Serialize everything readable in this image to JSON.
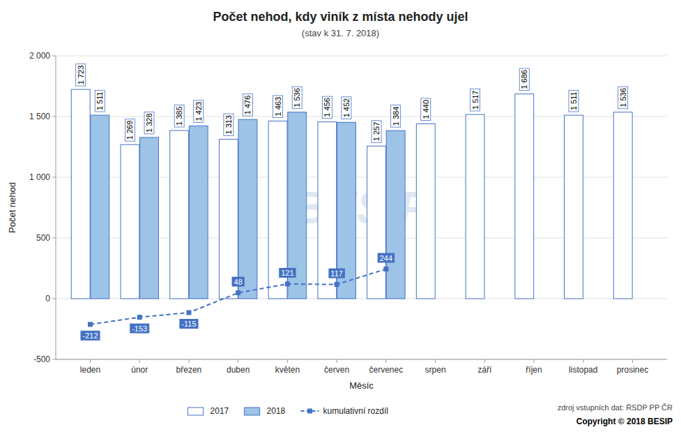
{
  "chart_data": {
    "type": "bar",
    "title": "Počet nehod, kdy viník z místa nehody ujel",
    "subtitle": "(stav k 31. 7. 2018)",
    "xlabel": "Měsíc",
    "ylabel": "Počet nehod",
    "categories": [
      "leden",
      "únor",
      "březen",
      "duben",
      "květen",
      "červen",
      "červenec",
      "srpen",
      "září",
      "říjen",
      "listopad",
      "prosinec"
    ],
    "series": [
      {
        "name": "2017",
        "type": "bar",
        "color": "#FFFFFF",
        "values": [
          1723,
          1269,
          1385,
          1313,
          1463,
          1456,
          1257,
          1440,
          1517,
          1686,
          1511,
          1536
        ],
        "value_labels": [
          "1 723",
          "1 269",
          "1 385",
          "1 313",
          "1 463",
          "1 456",
          "1 257",
          "1 440",
          "1 517",
          "1 686",
          "1 511",
          "1 536"
        ]
      },
      {
        "name": "2018",
        "type": "bar",
        "color": "#9DC3E6",
        "values": [
          1511,
          1328,
          1423,
          1476,
          1536,
          1452,
          1384,
          null,
          null,
          null,
          null,
          null
        ],
        "value_labels": [
          "1 511",
          "1 328",
          "1 423",
          "1 476",
          "1 536",
          "1 452",
          "1 384",
          null,
          null,
          null,
          null,
          null
        ]
      },
      {
        "name": "kumulativní rozdíl",
        "type": "line",
        "color": "#4472C4",
        "marker": "square",
        "line_style": "dashed",
        "values": [
          -212,
          -153,
          -115,
          48,
          121,
          117,
          244,
          null,
          null,
          null,
          null,
          null
        ]
      }
    ],
    "ylim": [
      -500,
      2000
    ],
    "yticks": [
      -500,
      0,
      500,
      {
        "value": 1000,
        "label": "1 000"
      },
      {
        "value": 1500,
        "label": "1 500"
      },
      {
        "value": 2000,
        "label": "2 000"
      }
    ],
    "grid": true,
    "legend": "bottom",
    "data_labels": true,
    "annotations": [
      "BESIP",
      "zdroj vstupních dat: ŘSDP PP ČR",
      "Copyright © 2018 BESIP"
    ]
  }
}
